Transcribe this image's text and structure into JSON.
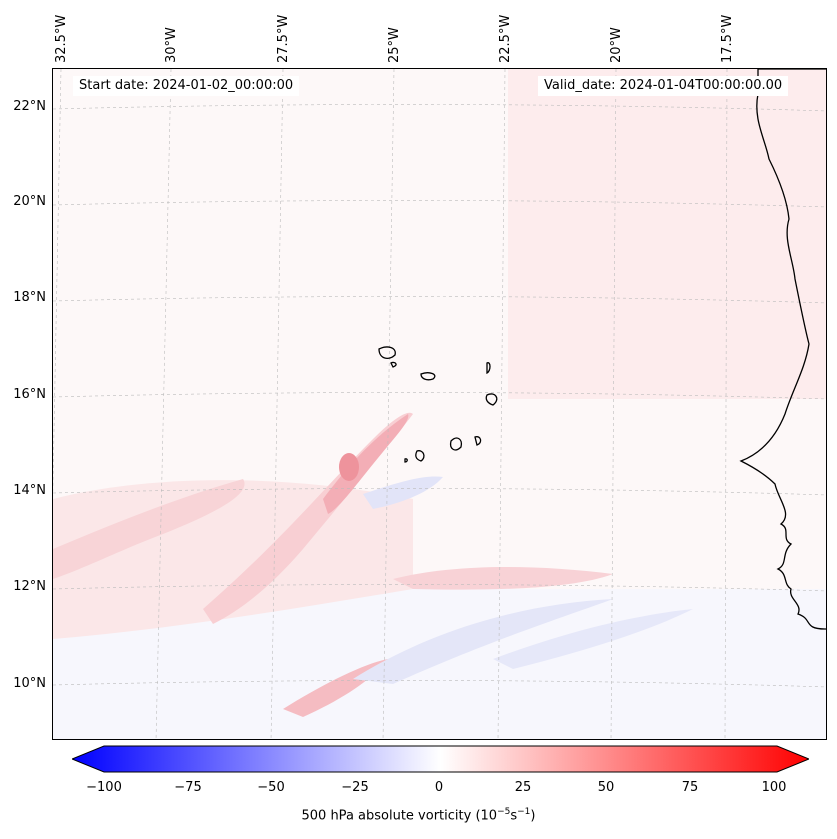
{
  "header": {
    "start_date": "Start date: 2024-01-02_00:00:00",
    "valid_date": "Valid_date: 2024-01-04T00:00:00.00"
  },
  "axes": {
    "longitude_labels": [
      "32.5°W",
      "30°W",
      "27.5°W",
      "25°W",
      "22.5°W",
      "20°W",
      "17.5°W"
    ],
    "latitude_labels": [
      "22°N",
      "20°N",
      "18°N",
      "16°N",
      "14°N",
      "12°N",
      "10°N"
    ]
  },
  "colorbar": {
    "variable": "500 hPa absolute vorticity",
    "units_base": "10",
    "units_exp1": "−5",
    "units_mid": "s",
    "units_exp2": "−1",
    "ticks": [
      "−100",
      "−75",
      "−50",
      "−25",
      "0",
      "25",
      "50",
      "75",
      "100"
    ],
    "tick_values": [
      -100,
      -75,
      -50,
      -25,
      0,
      25,
      50,
      75,
      100
    ],
    "range": [
      -100,
      100
    ],
    "low_color": "#0000ff",
    "mid_color": "#ffffff",
    "high_color": "#ff0000"
  },
  "map_features": {
    "coastline": "West Africa coast",
    "islands": "Cape Verde islands"
  }
}
